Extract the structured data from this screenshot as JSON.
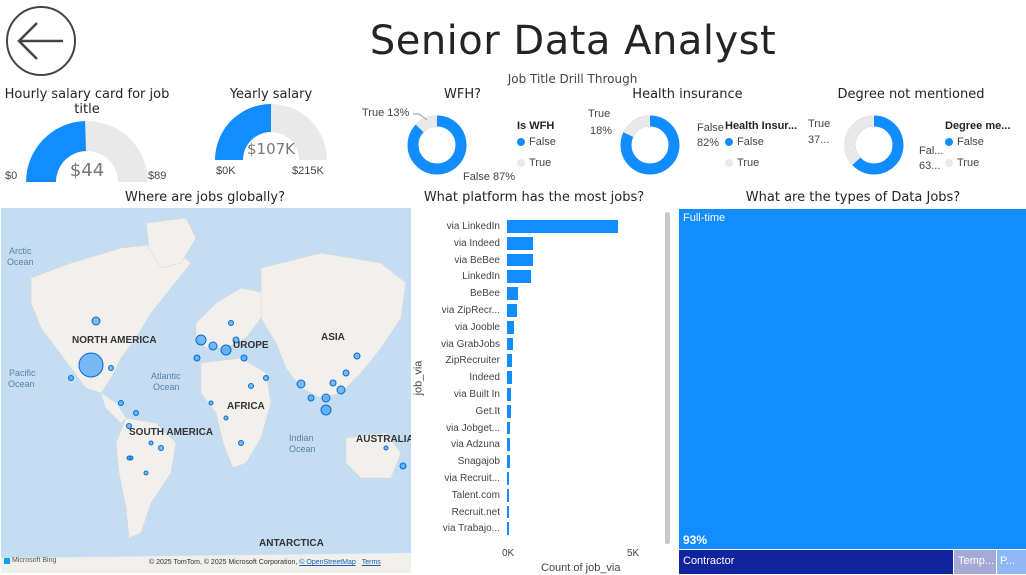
{
  "header": {
    "title": "Senior Data Analyst",
    "subtitle": "Job Title Drill Through",
    "back_icon": "back-arrow-icon"
  },
  "colors": {
    "accent": "#118DFF",
    "track": "#E9E9E9",
    "dark_blue": "#12239E",
    "treemap_light": "#A5A9D6",
    "treemap_light2": "#8FB8F5",
    "map_water": "#C4DDF2",
    "map_land": "#F2F0EC"
  },
  "hourly": {
    "title": "Hourly salary card for job title",
    "value": "$44",
    "min": "$0",
    "max": "$89",
    "fraction": 0.49
  },
  "yearly": {
    "title": "Yearly salary",
    "value": "$107K",
    "min": "$0K",
    "max": "$215K",
    "fraction": 0.5
  },
  "wfh": {
    "title": "WFH?",
    "true_label": "True 13%",
    "false_label": "False 87%",
    "true_pct": 13,
    "legend_title": "Is WFH",
    "legend_false": "False",
    "legend_true": "True"
  },
  "health": {
    "title": "Health insurance",
    "true_label": "True",
    "true_pct_label": "18%",
    "false_label": "False",
    "false_pct_label": "82%",
    "true_pct": 18,
    "legend_title": "Health Insur...",
    "legend_false": "False",
    "legend_true": "True"
  },
  "degree": {
    "title": "Degree not mentioned",
    "true_label": "True",
    "true_pct_label": "37...",
    "false_label": "Fal...",
    "false_pct_label": "63...",
    "true_pct": 37,
    "legend_title": "Degree me...",
    "legend_false": "False",
    "legend_true": "True"
  },
  "map": {
    "title": "Where are jobs globally?",
    "labels": {
      "arctic": "Arctic",
      "arctic2": "Ocean",
      "pacific": "Pacific",
      "pacific2": "Ocean",
      "atlantic": "Atlantic",
      "atlantic2": "Ocean",
      "indian": "Indian",
      "indian2": "Ocean",
      "north_america": "NORTH AMERICA",
      "south_america": "SOUTH AMERICA",
      "europe": "UROPE",
      "africa": "AFRICA",
      "asia": "ASIA",
      "australia": "AUSTRALIA",
      "antarctica": "ANTARCTICA"
    },
    "bing": "Microsoft Bing",
    "copyright": "© 2025 TomTom, © 2025 Microsoft Corporation,",
    "osm": "© OpenStreetMap",
    "terms": "Terms"
  },
  "platform": {
    "title": "What platform has the most jobs?",
    "ylabel": "job_via",
    "xlabel": "Count of job_via",
    "ticks": [
      "0K",
      "5K"
    ],
    "xmax": 5000,
    "items": [
      {
        "label": "via LinkedIn",
        "value": 4400
      },
      {
        "label": "via Indeed",
        "value": 1050
      },
      {
        "label": "via BeBee",
        "value": 1050
      },
      {
        "label": "LinkedIn",
        "value": 950
      },
      {
        "label": "BeBee",
        "value": 450
      },
      {
        "label": "via ZipRecr...",
        "value": 380
      },
      {
        "label": "via Jooble",
        "value": 280
      },
      {
        "label": "via GrabJobs",
        "value": 220
      },
      {
        "label": "ZipRecruiter",
        "value": 200
      },
      {
        "label": "Indeed",
        "value": 190
      },
      {
        "label": "via Built In",
        "value": 160
      },
      {
        "label": "Get.It",
        "value": 140
      },
      {
        "label": "via Jobget...",
        "value": 120
      },
      {
        "label": "via Adzuna",
        "value": 110
      },
      {
        "label": "Snagajob",
        "value": 100
      },
      {
        "label": "via Recruit...",
        "value": 95
      },
      {
        "label": "Talent.com",
        "value": 90
      },
      {
        "label": "Recruit.net",
        "value": 85
      },
      {
        "label": "via Trabajo...",
        "value": 80
      }
    ]
  },
  "types": {
    "title": "What are the types of Data Jobs?",
    "full_time": "Full-time",
    "full_time_pct": "93%",
    "contractor": "Contractor",
    "temp": "Temp...",
    "p": "P..."
  }
}
